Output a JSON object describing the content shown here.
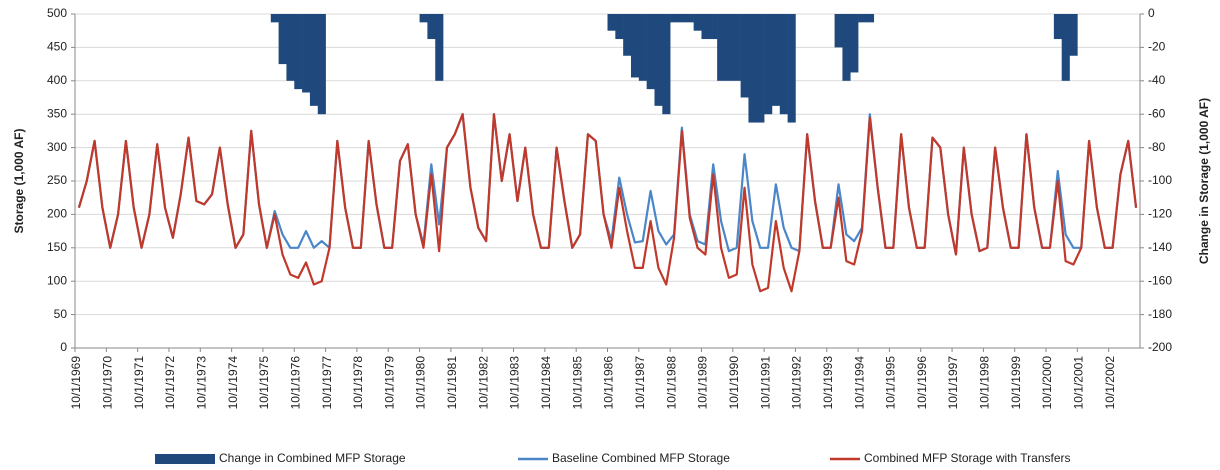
{
  "chart_data": {
    "type": "combo",
    "y_label": "Storage (1,000 AF)",
    "y2_label": "Change in Storage (1,000 AF)",
    "ylim": [
      0,
      500
    ],
    "yticks": [
      0,
      50,
      100,
      150,
      200,
      250,
      300,
      350,
      400,
      450,
      500
    ],
    "y2lim": [
      -200,
      0
    ],
    "y2ticks": [
      -200,
      -180,
      -160,
      -140,
      -120,
      -100,
      -80,
      -60,
      -40,
      -20,
      0
    ],
    "grid": true,
    "legend": "bottom",
    "categories": [
      "10/1/1969",
      null,
      null,
      null,
      "10/1/1970",
      null,
      null,
      null,
      "10/1/1971",
      null,
      null,
      null,
      "10/1/1972",
      null,
      null,
      null,
      "10/1/1973",
      null,
      null,
      null,
      "10/1/1974",
      null,
      null,
      null,
      "10/1/1975",
      null,
      null,
      null,
      "10/1/1976",
      null,
      null,
      null,
      "10/1/1977",
      null,
      null,
      null,
      "10/1/1978",
      null,
      null,
      null,
      "10/1/1979",
      null,
      null,
      null,
      "10/1/1980",
      null,
      null,
      null,
      "10/1/1981",
      null,
      null,
      null,
      "10/1/1982",
      null,
      null,
      null,
      "10/1/1983",
      null,
      null,
      null,
      "10/1/1984",
      null,
      null,
      null,
      "10/1/1985",
      null,
      null,
      null,
      "10/1/1986",
      null,
      null,
      null,
      "10/1/1987",
      null,
      null,
      null,
      "10/1/1988",
      null,
      null,
      null,
      "10/1/1989",
      null,
      null,
      null,
      "10/1/1990",
      null,
      null,
      null,
      "10/1/1991",
      null,
      null,
      null,
      "10/1/1992",
      null,
      null,
      null,
      "10/1/1993",
      null,
      null,
      null,
      "10/1/1994",
      null,
      null,
      null,
      "10/1/1995",
      null,
      null,
      null,
      "10/1/1996",
      null,
      null,
      null,
      "10/1/1997",
      null,
      null,
      null,
      "10/1/1998",
      null,
      null,
      null,
      "10/1/1999",
      null,
      null,
      null,
      "10/1/2000",
      null,
      null,
      null,
      "10/1/2001",
      null,
      null,
      null,
      "10/1/2002",
      null,
      null,
      null
    ],
    "series": [
      {
        "name": "Change in Combined MFP Storage",
        "type": "bar",
        "axis": "y2",
        "color": "#1f497d",
        "values": [
          0,
          0,
          0,
          0,
          0,
          0,
          0,
          0,
          0,
          0,
          0,
          0,
          0,
          0,
          0,
          0,
          0,
          0,
          0,
          0,
          0,
          0,
          0,
          0,
          0,
          -5,
          -30,
          -40,
          -45,
          -47,
          -55,
          -60,
          0,
          0,
          0,
          0,
          0,
          0,
          0,
          0,
          0,
          0,
          0,
          0,
          -5,
          -15,
          -40,
          0,
          0,
          0,
          0,
          0,
          0,
          0,
          0,
          0,
          0,
          0,
          0,
          0,
          0,
          0,
          0,
          0,
          0,
          0,
          0,
          0,
          -10,
          -15,
          -25,
          -38,
          -40,
          -45,
          -55,
          -60,
          -5,
          -5,
          -5,
          -10,
          -15,
          -15,
          -40,
          -40,
          -40,
          -50,
          -65,
          -65,
          -60,
          -55,
          -60,
          -65,
          0,
          0,
          0,
          0,
          0,
          -20,
          -40,
          -35,
          -5,
          -5,
          0,
          0,
          0,
          0,
          0,
          0,
          0,
          0,
          0,
          0,
          0,
          0,
          0,
          0,
          0,
          0,
          0,
          0,
          0,
          0,
          0,
          0,
          0,
          -15,
          -40,
          -25,
          0,
          0,
          0,
          0,
          0,
          0,
          0,
          0
        ]
      },
      {
        "name": "Baseline Combined MFP Storage",
        "type": "line",
        "color": "#4a86c8",
        "values": [
          210,
          250,
          310,
          210,
          150,
          200,
          310,
          210,
          150,
          200,
          305,
          210,
          165,
          230,
          315,
          220,
          215,
          230,
          300,
          215,
          150,
          170,
          325,
          215,
          150,
          205,
          170,
          150,
          150,
          175,
          150,
          160,
          150,
          310,
          210,
          150,
          150,
          310,
          215,
          150,
          150,
          280,
          305,
          200,
          155,
          275,
          185,
          300,
          320,
          350,
          240,
          180,
          160,
          350,
          250,
          320,
          220,
          300,
          200,
          150,
          150,
          300,
          220,
          150,
          170,
          320,
          310,
          200,
          160,
          255,
          200,
          158,
          160,
          235,
          175,
          155,
          170,
          330,
          200,
          160,
          155,
          275,
          190,
          145,
          150,
          290,
          190,
          150,
          150,
          245,
          180,
          150,
          145,
          320,
          220,
          150,
          150,
          245,
          170,
          160,
          180,
          350,
          240,
          150,
          150,
          320,
          210,
          150,
          150,
          315,
          300,
          200,
          140,
          300,
          200,
          145,
          150,
          300,
          210,
          150,
          150,
          320,
          210,
          150,
          150,
          265,
          170,
          150,
          150,
          310,
          210,
          150,
          150,
          260,
          310,
          210
        ]
      },
      {
        "name": "Combined MFP Storage with Transfers",
        "type": "line",
        "color": "#c0392b",
        "values": [
          210,
          250,
          310,
          210,
          150,
          200,
          310,
          210,
          150,
          200,
          305,
          210,
          165,
          230,
          315,
          220,
          215,
          230,
          300,
          215,
          150,
          170,
          325,
          215,
          150,
          200,
          140,
          110,
          105,
          128,
          95,
          100,
          150,
          310,
          210,
          150,
          150,
          310,
          215,
          150,
          150,
          280,
          305,
          200,
          150,
          260,
          145,
          300,
          320,
          350,
          240,
          180,
          160,
          350,
          250,
          320,
          220,
          300,
          200,
          150,
          150,
          300,
          220,
          150,
          170,
          320,
          310,
          200,
          150,
          240,
          175,
          120,
          120,
          190,
          120,
          95,
          165,
          325,
          195,
          150,
          140,
          260,
          150,
          105,
          110,
          240,
          125,
          85,
          90,
          190,
          120,
          85,
          145,
          320,
          220,
          150,
          150,
          225,
          130,
          125,
          175,
          345,
          240,
          150,
          150,
          320,
          210,
          150,
          150,
          315,
          300,
          200,
          140,
          300,
          200,
          145,
          150,
          300,
          210,
          150,
          150,
          320,
          210,
          150,
          150,
          250,
          130,
          125,
          150,
          310,
          210,
          150,
          150,
          260,
          310,
          210
        ]
      }
    ]
  }
}
